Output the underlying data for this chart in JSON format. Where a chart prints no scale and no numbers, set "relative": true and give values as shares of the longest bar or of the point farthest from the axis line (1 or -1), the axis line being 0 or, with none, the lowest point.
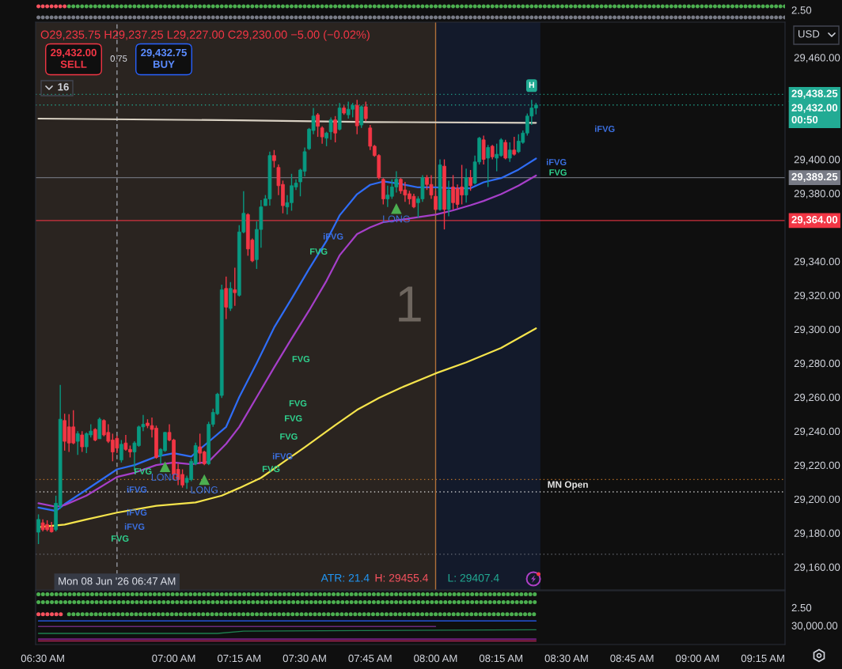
{
  "chart_data": [
    {
      "type": "candlestick",
      "x": [
        6.4833,
        6.5,
        6.5167,
        6.5333,
        6.55,
        6.5667,
        6.5833,
        6.6,
        6.6167,
        6.6333,
        6.65,
        6.6667,
        6.6833,
        6.7,
        6.7167,
        6.7333,
        6.75,
        6.7667,
        6.7833,
        6.8,
        6.8167,
        6.8333,
        6.85,
        6.8667,
        6.8833,
        6.9,
        6.9167,
        6.9333,
        6.95,
        6.9667,
        6.9833,
        7,
        7.0167,
        7.0333,
        7.05,
        7.0667,
        7.0833,
        7.1,
        7.1167,
        7.1333,
        7.15,
        7.1667,
        7.1833,
        7.2,
        7.2167,
        7.2333,
        7.25,
        7.2667,
        7.2833,
        7.3,
        7.3167,
        7.3333,
        7.35,
        7.3667,
        7.3833,
        7.4,
        7.4167,
        7.4333,
        7.45,
        7.4667,
        7.4833,
        7.5,
        7.5167,
        7.5333,
        7.55,
        7.5667,
        7.5833,
        7.6,
        7.6167,
        7.6333,
        7.65,
        7.6667,
        7.6833,
        7.7,
        7.7167,
        7.7333,
        7.75,
        7.7667,
        7.7833,
        7.8,
        7.8167,
        7.8333,
        7.85,
        7.8667,
        7.8833,
        7.9,
        7.9167,
        7.9333,
        7.95,
        7.9667,
        7.9833,
        8,
        8.0167,
        8.0333,
        8.05,
        8.0667,
        8.0833,
        8.1,
        8.1167,
        8.1333,
        8.15,
        8.1667,
        8.1833,
        8.2,
        8.2167,
        8.2333,
        8.25,
        8.2667,
        8.2833,
        8.3,
        8.3167,
        8.3333,
        8.35,
        8.3667,
        8.3833
      ],
      "ohlc": [
        [
          29180.5,
          29191,
          29173.5,
          29188
        ],
        [
          29186,
          29188,
          29181,
          29182
        ],
        [
          29185,
          29187.5,
          29181,
          29182
        ],
        [
          29183.5,
          29186.5,
          29180.25,
          29180.75
        ],
        [
          29182,
          29202,
          29181,
          29197.5
        ],
        [
          29196,
          29267.25,
          29194.25,
          29247
        ],
        [
          29246.25,
          29250.25,
          29228.5,
          29234
        ],
        [
          29242.5,
          29250,
          29227.75,
          29233
        ],
        [
          29242.5,
          29252.25,
          29232.25,
          29233
        ],
        [
          29234,
          29240,
          29226,
          29238.5
        ],
        [
          29237.75,
          29240,
          29227.75,
          29230.75
        ],
        [
          29230.75,
          29239.25,
          29227,
          29238.5
        ],
        [
          29237.75,
          29244,
          29236.25,
          29240
        ],
        [
          29241,
          29241.75,
          29234,
          29234.75
        ],
        [
          29235.5,
          29248,
          29235.5,
          29247
        ],
        [
          29246.25,
          29247,
          29237,
          29237.75
        ],
        [
          29239.25,
          29244,
          29233,
          29234
        ],
        [
          29234.75,
          29238.5,
          29222.25,
          29227.75
        ],
        [
          29235.75,
          29237.25,
          29227,
          29230
        ],
        [
          29223,
          29234.75,
          29221.5,
          29232.25
        ],
        [
          29233,
          29237.75,
          29228.5,
          29229.25
        ],
        [
          29229.25,
          29231.5,
          29224.5,
          29227.75
        ],
        [
          29227.75,
          29234,
          29216.75,
          29233
        ],
        [
          29231.5,
          29243.25,
          29230.75,
          29242.5
        ],
        [
          29242.5,
          29249.5,
          29240,
          29244
        ],
        [
          29244.75,
          29247,
          29241.75,
          29243.25
        ],
        [
          29243.25,
          29248,
          29236.25,
          29241
        ],
        [
          29241.75,
          29243.25,
          29223.75,
          29224.5
        ],
        [
          29225.5,
          29230,
          29220.75,
          29229.25
        ],
        [
          29228.5,
          29239.5,
          29227.75,
          29239.25
        ],
        [
          29239.25,
          29244,
          29234,
          29234.75
        ],
        [
          29234.75,
          29235.5,
          29211.5,
          29214.5
        ],
        [
          29217.5,
          29220.75,
          29208.25,
          29211.5
        ],
        [
          29214.5,
          29217.5,
          29206.75,
          29208.25
        ],
        [
          29209.75,
          29213.75,
          29206,
          29212.25
        ],
        [
          29211.5,
          29223.75,
          29210.5,
          29222.25
        ],
        [
          29220.75,
          29233.25,
          29220,
          29231.5
        ],
        [
          29230.75,
          29238.5,
          29220.75,
          29227
        ],
        [
          29227.75,
          29228.5,
          29220,
          29220.75
        ],
        [
          29220.75,
          29245.5,
          29220,
          29244
        ],
        [
          29244,
          29253.25,
          29242.5,
          29251
        ],
        [
          29250.25,
          29262.5,
          29249.5,
          29261.75
        ],
        [
          29261,
          29326.25,
          29259.5,
          29323.25
        ],
        [
          29324,
          29331,
          29306,
          29313
        ],
        [
          29312.25,
          29327.75,
          29310.75,
          29324
        ],
        [
          29323.25,
          29336.25,
          29313.75,
          29321.5
        ],
        [
          29320,
          29361.25,
          29319.25,
          29357.25
        ],
        [
          29357.25,
          29381.25,
          29356.5,
          29368.25
        ],
        [
          29367.5,
          29368.25,
          29343.25,
          29347.25
        ],
        [
          29352.5,
          29353.5,
          29339.5,
          29340.25
        ],
        [
          29341,
          29363.5,
          29335.5,
          29358.75
        ],
        [
          29358.75,
          29376,
          29348,
          29372
        ],
        [
          29372.75,
          29379,
          29372.75,
          29376.75
        ],
        [
          29376.75,
          29404.5,
          29372.75,
          29402.25
        ],
        [
          29402.25,
          29405.5,
          29395.25,
          29399.25
        ],
        [
          29395.25,
          29397,
          29379,
          29384.5
        ],
        [
          29385.25,
          29387.5,
          29368.25,
          29372.75
        ],
        [
          29372,
          29379,
          29367.5,
          29374.5
        ],
        [
          29374.5,
          29391.5,
          29369.75,
          29384.5
        ],
        [
          29383.75,
          29388.25,
          29382,
          29386
        ],
        [
          29386.75,
          29394.5,
          29378.25,
          29393.75
        ],
        [
          29393,
          29407,
          29390,
          29404.5
        ],
        [
          29406.25,
          29418.5,
          29405.5,
          29417.75
        ],
        [
          29417,
          29430.25,
          29414.75,
          29425.5
        ],
        [
          29426.25,
          29427.25,
          29413.25,
          29419.5
        ],
        [
          29418.5,
          29419.5,
          29409.25,
          29413.25
        ],
        [
          29412.5,
          29416.25,
          29407.75,
          29415.5
        ],
        [
          29416.25,
          29424.75,
          29411.5,
          29423.25
        ],
        [
          29423.25,
          29425.5,
          29410,
          29415.5
        ],
        [
          29417.75,
          29433.25,
          29417,
          29430.25
        ],
        [
          29430.25,
          29431.75,
          29426.25,
          29427.25
        ],
        [
          29426.25,
          29434,
          29424,
          29429.5
        ],
        [
          29429.5,
          29433.25,
          29424.75,
          29431.75
        ],
        [
          29431.75,
          29435,
          29414.75,
          29419.75
        ],
        [
          29420.25,
          29431.75,
          29418.5,
          29431
        ],
        [
          29431,
          29434,
          29422.5,
          29424
        ],
        [
          29418.5,
          29420.25,
          29405.5,
          29407.75
        ],
        [
          29407.75,
          29408.5,
          29401.5,
          29402.25
        ],
        [
          29402.25,
          29403,
          29388.25,
          29389.25
        ],
        [
          29388.25,
          29389,
          29373.5,
          29376.75
        ],
        [
          29376.75,
          29384.5,
          29372,
          29379
        ],
        [
          29378.25,
          29388.25,
          29376.75,
          29383.75
        ],
        [
          29383.75,
          29393,
          29380.5,
          29388.25
        ],
        [
          29388.25,
          29389,
          29379.75,
          29381.5
        ],
        [
          29382,
          29386.75,
          29375,
          29379
        ],
        [
          29379.75,
          29381.5,
          29373.5,
          29376.75
        ],
        [
          29378.25,
          29379.75,
          29371.25,
          29372
        ],
        [
          29374.5,
          29378.25,
          29365.75,
          29376.75
        ],
        [
          29376.75,
          29390.75,
          29375,
          29389.25
        ],
        [
          29389.25,
          29390.75,
          29382,
          29385.25
        ],
        [
          29385.25,
          29390.75,
          29376.75,
          29379
        ],
        [
          29378.25,
          29381.5,
          29369.75,
          29370.5
        ],
        [
          29370.5,
          29400,
          29369.75,
          29396.75
        ],
        [
          29396,
          29400,
          29358.75,
          29370.5
        ],
        [
          29370.5,
          29387.5,
          29366.5,
          29382
        ],
        [
          29383.75,
          29390.75,
          29370.5,
          29374.5
        ],
        [
          29383,
          29385.25,
          29371.25,
          29373.5
        ],
        [
          29383.75,
          29396.75,
          29373.5,
          29379
        ],
        [
          29379,
          29394.5,
          29374.5,
          29389.25
        ],
        [
          29389.25,
          29393.75,
          29381.5,
          29384.5
        ],
        [
          29386,
          29402.25,
          29385.25,
          29398.5
        ],
        [
          29398.5,
          29413.25,
          29397,
          29412.5
        ],
        [
          29411.5,
          29414,
          29397,
          29400
        ],
        [
          29400.75,
          29408.5,
          29383.75,
          29407
        ],
        [
          29407.75,
          29408.5,
          29400,
          29401.5
        ],
        [
          29400.75,
          29409.25,
          29393,
          29403
        ],
        [
          29402.25,
          29412.5,
          29401.5,
          29411.5
        ],
        [
          29410,
          29411.5,
          29400,
          29400.75
        ],
        [
          29400.75,
          29410,
          29398.5,
          29405.5
        ],
        [
          29405.5,
          29413.25,
          29402.25,
          29403
        ],
        [
          29404.5,
          29414.75,
          29403.75,
          29410.75
        ],
        [
          29410,
          29417,
          29409.25,
          29415.5
        ],
        [
          29415.5,
          29427,
          29414,
          29425.5
        ],
        [
          29425.5,
          29435,
          29420.25,
          29430.25
        ],
        [
          29430.25,
          29433.25,
          29426.5,
          29432
        ]
      ],
      "colors": [
        "#089981",
        "#f23645",
        "#f23645",
        "#f23645",
        "#089981",
        "#089981",
        "#f23645",
        "#f23645",
        "#f23645",
        "#089981",
        "#f23645",
        "#089981",
        "#089981",
        "#f23645",
        "#089981",
        "#f23645",
        "#f23645",
        "#f23645",
        "#f23645",
        "#089981",
        "#f23645",
        "#f23645",
        "#089981",
        "#089981",
        "#089981",
        "#f23645",
        "#f23645",
        "#f23645",
        "#089981",
        "#089981",
        "#f23645",
        "#f23645",
        "#f23645",
        "#f23645",
        "#089981",
        "#089981",
        "#089981",
        "#f23645",
        "#f23645",
        "#089981",
        "#089981",
        "#089981",
        "#089981",
        "#f23645",
        "#089981",
        "#f23645",
        "#089981",
        "#089981",
        "#f23645",
        "#f23645",
        "#089981",
        "#089981",
        "#089981",
        "#089981",
        "#f23645",
        "#f23645",
        "#f23645",
        "#089981",
        "#089981",
        "#089981",
        "#089981",
        "#089981",
        "#089981",
        "#089981",
        "#f23645",
        "#f23645",
        "#089981",
        "#089981",
        "#f23645",
        "#089981",
        "#f23645",
        "#089981",
        "#089981",
        "#f23645",
        "#089981",
        "#f23645",
        "#f23645",
        "#f23645",
        "#f23645",
        "#f23645",
        "#089981",
        "#089981",
        "#089981",
        "#f23645",
        "#f23645",
        "#f23645",
        "#f23645",
        "#089981",
        "#089981",
        "#f23645",
        "#f23645",
        "#f23645",
        "#089981",
        "#f23645",
        "#089981",
        "#f23645",
        "#f23645",
        "#f23645",
        "#089981",
        "#f23645",
        "#089981",
        "#089981",
        "#f23645",
        "#089981",
        "#f23645",
        "#089981",
        "#089981",
        "#f23645",
        "#089981",
        "#f23645",
        "#089981",
        "#089981",
        "#089981",
        "#089981",
        "#089981"
      ],
      "series": [
        {
          "type": "line",
          "color": "#2f6df6",
          "x": [
            6.4833,
            6.55,
            6.5833,
            6.6667,
            6.7833,
            6.85,
            6.9333,
            7,
            7.0667,
            7.2,
            7.25,
            7.3167,
            7.3833,
            7.45,
            7.5167,
            7.5833,
            7.6333,
            7.7,
            7.75,
            7.8,
            7.8667,
            7.9333,
            8,
            8.0667,
            8.1333,
            8.1833,
            8.25,
            8.3167,
            8.3833
          ],
          "values": [
            29195,
            29193,
            29197,
            29205.5,
            29217.5,
            29220,
            29225,
            29227,
            29225,
            29242.5,
            29260,
            29280,
            29301,
            29318,
            29335.5,
            29352,
            29367,
            29379.5,
            29385,
            29387,
            29385.5,
            29383.5,
            29383.5,
            29383,
            29383,
            29386.5,
            29389,
            29394,
            29400.5
          ]
        },
        {
          "type": "line",
          "color": "#a63fc9",
          "x": [
            6.4833,
            6.55,
            6.5833,
            6.6667,
            6.7833,
            6.85,
            6.9333,
            7,
            7.0667,
            7.1333,
            7.2,
            7.25,
            7.3167,
            7.3833,
            7.45,
            7.5167,
            7.5833,
            7.6333,
            7.7,
            7.75,
            7.8,
            7.8667,
            7.9333,
            8,
            8.0667,
            8.1333,
            8.1833,
            8.25,
            8.3167,
            8.3833
          ],
          "values": [
            29197.5,
            29195.5,
            29196.5,
            29202,
            29213,
            29215.5,
            29220,
            29221.5,
            29220.5,
            29222,
            29232.5,
            29242.5,
            29260,
            29277.5,
            29294.5,
            29311,
            29328.5,
            29343.5,
            29356,
            29360,
            29363,
            29364.5,
            29366,
            29367.5,
            29370,
            29373,
            29375.5,
            29379.5,
            29384.5,
            29390.5
          ]
        },
        {
          "type": "line",
          "color": "#f5e44c",
          "x": [
            6.4833,
            6.5833,
            6.6667,
            6.7833,
            6.9333,
            7.0833,
            7.1833,
            7.25,
            7.3333,
            7.4167,
            7.5,
            7.6167,
            7.7,
            7.7833,
            7.8667,
            8,
            8.1167,
            8.25,
            8.3833
          ],
          "values": [
            29183.5,
            29185,
            29188,
            29192,
            29196,
            29198,
            29202,
            29206.5,
            29212.5,
            29221.5,
            29230.5,
            29243.5,
            29252.5,
            29259.5,
            29265.5,
            29274,
            29280.5,
            29289,
            29300.5
          ]
        },
        {
          "type": "line",
          "color": "#d8d0c2",
          "x": [
            6.4833,
            7.25,
            7.75,
            8.3833
          ],
          "values": [
            29424,
            29423,
            29422,
            29421.5
          ]
        },
        {
          "type": "scatter",
          "name": "LONG",
          "color": "#4caf50",
          "marker": "triangle",
          "x": [
            6.9667,
            7.1167,
            7.85
          ],
          "values": [
            29219,
            29211.5,
            29371
          ]
        }
      ],
      "xlim": [
        6.4725,
        9.3342
      ],
      "ylim": [
        29146.5,
        29480.8
      ],
      "yticks": [
        {
          "value": 29460,
          "label": "29,460.00"
        },
        {
          "value": 29400,
          "label": "29,400.00"
        },
        {
          "value": 29380,
          "label": "29,380.00"
        },
        {
          "value": 29340,
          "label": "29,340.00"
        },
        {
          "value": 29320,
          "label": "29,320.00"
        },
        {
          "value": 29300,
          "label": "29,300.00"
        },
        {
          "value": 29280,
          "label": "29,280.00"
        },
        {
          "value": 29260,
          "label": "29,260.00"
        },
        {
          "value": 29240,
          "label": "29,240.00"
        },
        {
          "value": 29220,
          "label": "29,220.00"
        },
        {
          "value": 29200,
          "label": "29,200.00"
        },
        {
          "value": 29180,
          "label": "29,180.00"
        },
        {
          "value": 29160,
          "label": "29,160.00"
        }
      ],
      "tick_labels": "y",
      "bands": [
        {
          "axis": "x",
          "from": 6.4725,
          "to": 8,
          "color": "#2a2420"
        },
        {
          "axis": "x",
          "from": 8,
          "to": 8.4,
          "color": "#131a2b"
        }
      ],
      "ref_lines": [
        {
          "axis": "y",
          "value": 29438.25,
          "label": "29,438.25",
          "color": "#22ab94",
          "line_style": "dotted"
        },
        {
          "axis": "y",
          "value": 29432,
          "label": "29,432.00\n00:50",
          "color": "#22ab94",
          "line_style": "dotted"
        },
        {
          "axis": "y",
          "value": 29389.25,
          "label": "29,389.25",
          "color": "#787b86",
          "line_style": "solid"
        },
        {
          "axis": "y",
          "value": 29364,
          "label": "29,364.00",
          "color": "#f23645",
          "line_style": "solid"
        },
        {
          "axis": "y",
          "value": 29211.5,
          "color": "#d9822b",
          "line_style": "dotted"
        },
        {
          "axis": "y",
          "value": 29204.25,
          "color": "#e0e0e0",
          "line_style": "dotted"
        },
        {
          "axis": "y",
          "value": 29167.5,
          "color": "#787b86",
          "line_style": "dotted"
        },
        {
          "axis": "x",
          "value": 8,
          "color": "#b0703a",
          "line_style": "solid"
        },
        {
          "axis": "x",
          "value": 6.7833,
          "color": "#9598a1",
          "line_style": "dashed"
        }
      ],
      "annotations": [
        "O29,235.75 H29,237.25 L29,227.00 C29,230.00 −5.00 (−0.02%)",
        "29,432.00\nSELL",
        "0.75",
        "29,432.75\nBUY",
        "16",
        "USD",
        "ATR: 21.4",
        "H: 29455.4",
        "L: 29407.4",
        "FVG",
        "iFVG",
        "FVG",
        "FVG",
        "FVG",
        "FVG",
        "iFVG",
        "FVG",
        "FVG",
        "iFVG",
        "iFVG",
        "iFVG",
        "FVG",
        "iFVG",
        "iFVG",
        "FVG",
        "1",
        "Mon 08 Jun '26 06:47 AM",
        "2.50",
        {
          "text": "MN Open",
          "x": 8.505,
          "y": 29204.25
        },
        {
          "text": "H",
          "x": 8.3667,
          "y": 29435
        }
      ]
    },
    {
      "type": "line",
      "relative": true,
      "xlim": [
        6.4725,
        9.3342
      ],
      "tick_labels": "x",
      "annotations": [
        "2.50",
        "30,000.00"
      ],
      "xticks": [
        {
          "value": 6.5,
          "label": "06:30 AM"
        },
        {
          "value": 7,
          "label": "07:00 AM"
        },
        {
          "value": 7.25,
          "label": "07:15 AM"
        },
        {
          "value": 7.5,
          "label": "07:30 AM"
        },
        {
          "value": 7.75,
          "label": "07:45 AM"
        },
        {
          "value": 8,
          "label": "08:00 AM"
        },
        {
          "value": 8.25,
          "label": "08:15 AM"
        },
        {
          "value": 8.5,
          "label": "08:30 AM"
        },
        {
          "value": 8.75,
          "label": "08:45 AM"
        },
        {
          "value": 9,
          "label": "09:00 AM"
        },
        {
          "value": 9.25,
          "label": "09:15 AM"
        }
      ],
      "series": [
        {
          "color": "#4caf50",
          "line_style": "dotted",
          "x": [
            6.4833,
            8.3833
          ],
          "values": [
            1,
            1
          ]
        },
        {
          "color": "#4caf50",
          "line_style": "dotted",
          "x": [
            6.4833,
            8.3833
          ],
          "values": [
            0.83,
            0.83
          ]
        },
        {
          "color": "#f7525f",
          "line_style": "dotted",
          "x": [
            6.4833,
            6.5833
          ],
          "values": [
            0.57,
            0.57
          ]
        },
        {
          "color": "#4caf50",
          "line_style": "dotted",
          "x": [
            6.6,
            8.3833
          ],
          "values": [
            0.57,
            0.57
          ]
        },
        {
          "color": "#2962ff",
          "x": [
            6.4833,
            8.3833
          ],
          "values": [
            0.43,
            0.43
          ]
        },
        {
          "color": "#6a2a7a",
          "x": [
            6.4833,
            8
          ],
          "values": [
            0.31,
            0.31
          ]
        },
        {
          "color": "#1e7f4f",
          "x": [
            6.4833,
            7.1667,
            7.2667,
            8.3833
          ],
          "values": [
            0.16,
            0.16,
            0.21,
            0.24
          ]
        },
        {
          "color": "#9c27b0",
          "x": [
            6.4833,
            8.3833
          ],
          "values": [
            0.04,
            0.04
          ]
        },
        {
          "color": "#b0245a",
          "x": [
            6.4833,
            8.3833
          ],
          "values": [
            0,
            0
          ]
        }
      ]
    }
  ]
}
